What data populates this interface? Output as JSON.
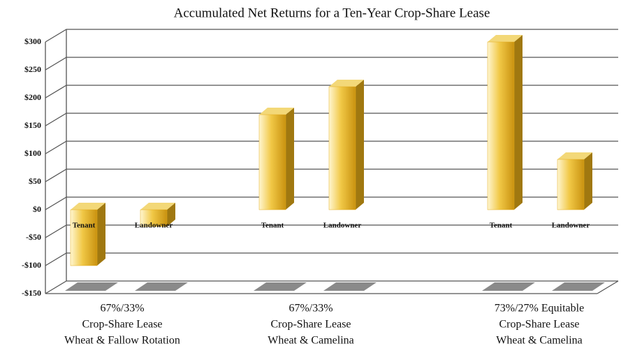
{
  "chart_data": {
    "type": "bar3d",
    "title": "Accumulated Net Returns for a Ten-Year Crop-Share Lease",
    "categories": [
      [
        "67%/33%",
        "Crop-Share Lease",
        "Wheat & Fallow Rotation"
      ],
      [
        "67%/33%",
        "Crop-Share Lease",
        "Wheat & Camelina"
      ],
      [
        "73%/27% Equitable",
        "Crop-Share Lease",
        "Wheat & Camelina"
      ]
    ],
    "series": [
      {
        "name": "Tenant",
        "color": "#e3ac1e",
        "values": [
          -100,
          170,
          300
        ]
      },
      {
        "name": "Landowner",
        "color": "#e3ac1e",
        "values": [
          -30,
          220,
          90
        ]
      }
    ],
    "ylim": [
      -150,
      300
    ],
    "yticks": [
      {
        "value": -150,
        "label": "-$150"
      },
      {
        "value": -100,
        "label": "-$100"
      },
      {
        "value": -50,
        "label": "-$50"
      },
      {
        "value": 0,
        "label": "$0"
      },
      {
        "value": 50,
        "label": "$50"
      },
      {
        "value": 100,
        "label": "$100"
      },
      {
        "value": 150,
        "label": "$150"
      },
      {
        "value": 200,
        "label": "$200"
      },
      {
        "value": 250,
        "label": "$250"
      },
      {
        "value": 300,
        "label": "$300"
      }
    ],
    "grid": true
  }
}
